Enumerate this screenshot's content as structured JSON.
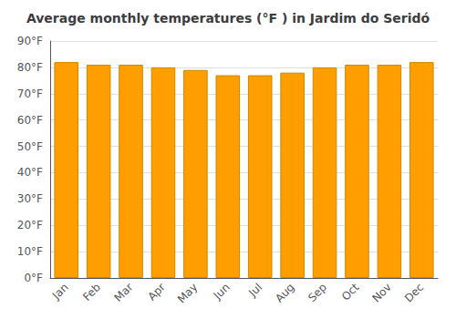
{
  "chart_data": {
    "type": "bar",
    "title": "Average monthly temperatures (°F ) in Jardim do Seridó",
    "categories": [
      "Jan",
      "Feb",
      "Mar",
      "Apr",
      "May",
      "Jun",
      "Jul",
      "Aug",
      "Sep",
      "Oct",
      "Nov",
      "Dec"
    ],
    "values": [
      82,
      81,
      81,
      80,
      79,
      77,
      77,
      78,
      80,
      81,
      81,
      82
    ],
    "color": "#ff9e00",
    "ylim": [
      0,
      90
    ],
    "yticks": [
      {
        "value": 0,
        "label": "0°F"
      },
      {
        "value": 10,
        "label": "10°F"
      },
      {
        "value": 20,
        "label": "20°F"
      },
      {
        "value": 30,
        "label": "30°F"
      },
      {
        "value": 40,
        "label": "40°F"
      },
      {
        "value": 50,
        "label": "50°F"
      },
      {
        "value": 60,
        "label": "60°F"
      },
      {
        "value": 70,
        "label": "70°F"
      },
      {
        "value": 80,
        "label": "80°F"
      },
      {
        "value": 90,
        "label": "90°F"
      }
    ],
    "grid": true
  }
}
